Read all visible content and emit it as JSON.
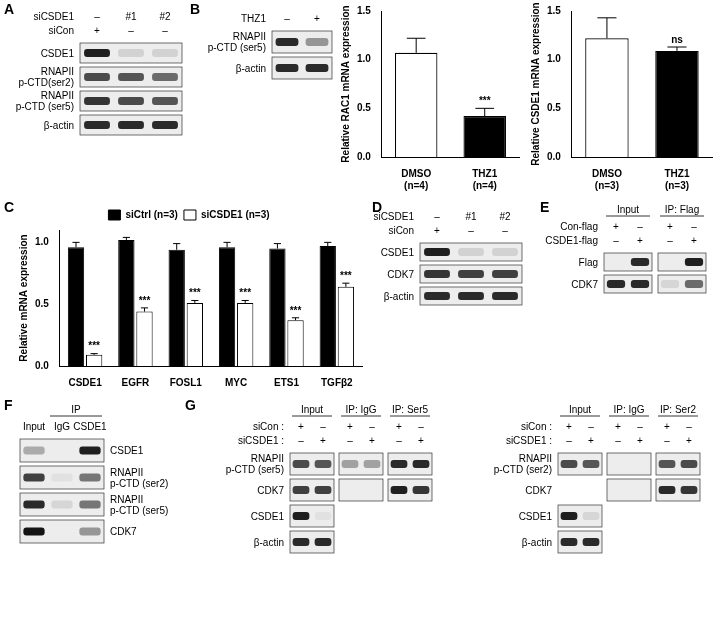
{
  "panels": [
    {
      "letter": "A",
      "blots": [
        {
          "marks": [
            {
              "label": "siCSDE1",
              "values": [
                "–",
                "#1",
                "#2"
              ]
            },
            {
              "label": "siCon",
              "values": [
                "+",
                "–",
                "–"
              ]
            }
          ],
          "boxes": [
            3
          ],
          "rows": [
            {
              "label": "CSDE1",
              "bands": [
                0.95,
                0.12,
                0.12
              ]
            },
            {
              "label": "RNAPII\np-CTD(ser2)",
              "bands": [
                0.75,
                0.7,
                0.6
              ]
            },
            {
              "label": "RNAPII\np-CTD (ser5)",
              "bands": [
                0.85,
                0.75,
                0.7
              ]
            },
            {
              "label": "β-actin",
              "bands": [
                0.9,
                0.9,
                0.9
              ]
            }
          ]
        }
      ]
    },
    {
      "letter": "B",
      "blots": [
        {
          "marks": [
            {
              "label": "THZ1",
              "values": [
                "–",
                "+"
              ]
            }
          ],
          "boxes": [
            2
          ],
          "rows": [
            {
              "label": "RNAPII\np-CTD (ser5)",
              "bands": [
                0.9,
                0.4
              ]
            },
            {
              "label": "β-actin",
              "bands": [
                0.9,
                0.9
              ]
            }
          ]
        }
      ]
    },
    {
      "letter": "C"
    },
    {
      "letter": "D",
      "blots": [
        {
          "marks": [
            {
              "label": "siCSDE1",
              "values": [
                "–",
                "#1",
                "#2"
              ]
            },
            {
              "label": "siCon",
              "values": [
                "+",
                "–",
                "–"
              ]
            }
          ],
          "boxes": [
            3
          ],
          "rows": [
            {
              "label": "CSDE1",
              "bands": [
                0.95,
                0.12,
                0.12
              ]
            },
            {
              "label": "CDK7",
              "bands": [
                0.85,
                0.8,
                0.8
              ]
            },
            {
              "label": "β-actin",
              "bands": [
                0.9,
                0.9,
                0.9
              ]
            }
          ]
        }
      ]
    },
    {
      "letter": "E",
      "blots": [
        {
          "spans": [
            {
              "label": "Input",
              "from": 0,
              "to": 1
            },
            {
              "label": "IP: Flag",
              "from": 2,
              "to": 3
            }
          ],
          "marks": [
            {
              "label": "Con-flag",
              "values": [
                "+",
                "–",
                "+",
                "–"
              ]
            },
            {
              "label": "CSDE1-flag",
              "values": [
                "–",
                "+",
                "–",
                "+"
              ]
            }
          ],
          "boxes": [
            2,
            2
          ],
          "rows": [
            {
              "label": "Flag",
              "bands": [
                0,
                0.9,
                0,
                0.95
              ]
            },
            {
              "label": "CDK7",
              "bands": [
                0.9,
                0.9,
                0.1,
                0.6
              ]
            }
          ]
        }
      ]
    },
    {
      "letter": "F",
      "blots": [
        {
          "spans": [
            {
              "label": "IP",
              "from": 1,
              "to": 2
            }
          ],
          "lane_labels": [
            "Input",
            "IgG",
            "CSDE1"
          ],
          "boxes": [
            3
          ],
          "rows": [
            {
              "label": "CSDE1",
              "bands": [
                0.3,
                0,
                0.95
              ]
            },
            {
              "label": "RNAPII\np-CTD (ser2)",
              "bands": [
                0.8,
                0.05,
                0.55
              ]
            },
            {
              "label": "RNAPII\np-CTD (ser5)",
              "bands": [
                0.9,
                0.1,
                0.55
              ]
            },
            {
              "label": "CDK7",
              "bands": [
                1,
                0,
                0.4
              ]
            }
          ]
        }
      ]
    },
    {
      "letter": "G",
      "blots": [
        {
          "spans": [
            {
              "label": "Input",
              "from": 0,
              "to": 1
            },
            {
              "label": "IP: IgG",
              "from": 2,
              "to": 3
            },
            {
              "label": "IP: Ser5",
              "from": 4,
              "to": 5
            }
          ],
          "marks": [
            {
              "label": "siCon :",
              "values": [
                "+",
                "–",
                "+",
                "–",
                "+",
                "–"
              ]
            },
            {
              "label": "siCSDE1 :",
              "values": [
                "–",
                "+",
                "–",
                "+",
                "–",
                "+"
              ]
            }
          ],
          "boxes": [
            2,
            2,
            2
          ],
          "rows": [
            {
              "label": "RNAPII\np-CTD (ser5)",
              "bands": [
                0.75,
                0.7,
                0.35,
                0.35,
                0.9,
                0.9
              ]
            },
            {
              "label": "CDK7",
              "bands": [
                0.8,
                0.8,
                0,
                0,
                0.95,
                0.85
              ]
            },
            {
              "label": "CSDE1",
              "bands": [
                0.95,
                0.05,
                null,
                null,
                null,
                null
              ]
            },
            {
              "label": "β-actin",
              "bands": [
                0.9,
                0.9,
                null,
                null,
                null,
                null
              ]
            }
          ]
        },
        {
          "spans": [
            {
              "label": "Input",
              "from": 0,
              "to": 1
            },
            {
              "label": "IP: IgG",
              "from": 2,
              "to": 3
            },
            {
              "label": "IP: Ser2",
              "from": 4,
              "to": 5
            }
          ],
          "marks": [
            {
              "label": "siCon :",
              "values": [
                "+",
                "–",
                "+",
                "–",
                "+",
                "–"
              ]
            },
            {
              "label": "siCSDE1 :",
              "values": [
                "–",
                "+",
                "–",
                "+",
                "–",
                "+"
              ]
            }
          ],
          "boxes": [
            2,
            2,
            2
          ],
          "rows": [
            {
              "label": "RNAPII\np-CTD (ser2)",
              "bands": [
                0.75,
                0.7,
                0,
                0,
                0.7,
                0.75
              ]
            },
            {
              "label": "CDK7",
              "bands": [
                null,
                null,
                0,
                0,
                0.9,
                0.85
              ]
            },
            {
              "label": "CSDE1",
              "bands": [
                0.95,
                0.1,
                null,
                null,
                null,
                null
              ]
            },
            {
              "label": "β-actin",
              "bands": [
                0.9,
                0.9,
                null,
                null,
                null,
                null
              ]
            }
          ]
        }
      ]
    }
  ],
  "chart_data": [
    {
      "type": "bar",
      "y_label": "Relative RAC1 mRNA expression",
      "categories": [
        "DMSO\n(n=4)",
        "THZ1\n(n=4)"
      ],
      "values": [
        1.07,
        0.42
      ],
      "errors": [
        0.15,
        0.08
      ],
      "colors": [
        "#ffffff",
        "#000000"
      ],
      "annotations": [
        null,
        "***"
      ],
      "ylim": [
        0,
        1.5
      ],
      "yticks": [
        {
          "value": 0,
          "label": "0.0"
        },
        {
          "value": 0.5,
          "label": "0.5"
        },
        {
          "value": 1,
          "label": "1.0"
        },
        {
          "value": 1.5,
          "label": "1.5"
        }
      ],
      "grid": false
    },
    {
      "type": "bar",
      "y_label": "Relative CSDE1 mRNA expression",
      "categories": [
        "DMSO\n(n=3)",
        "THZ1\n(n=3)"
      ],
      "values": [
        1.22,
        1.09
      ],
      "errors": [
        0.21,
        0.04
      ],
      "colors": [
        "#ffffff",
        "#000000"
      ],
      "annotations": [
        null,
        "ns"
      ],
      "ylim": [
        0,
        1.5
      ],
      "yticks": [
        {
          "value": 0,
          "label": "0.0"
        },
        {
          "value": 0.5,
          "label": "0.5"
        },
        {
          "value": 1,
          "label": "1.0"
        },
        {
          "value": 1.5,
          "label": "1.5"
        }
      ],
      "grid": false
    },
    {
      "type": "bar",
      "y_label": "Relative mRNA expression",
      "categories": [
        "CSDE1",
        "EGFR",
        "FOSL1",
        "MYC",
        "ETS1",
        "TGFβ2"
      ],
      "series": [
        {
          "name": "siCtrl (n=3)",
          "color": "#000000",
          "values": [
            0.96,
            1.02,
            0.94,
            0.96,
            0.95,
            0.97
          ],
          "errors": [
            0.04,
            0.02,
            0.05,
            0.04,
            0.04,
            0.03
          ]
        },
        {
          "name": "siCSDE1 (n=3)",
          "color": "#ffffff",
          "values": [
            0.09,
            0.44,
            0.51,
            0.51,
            0.37,
            0.64
          ],
          "errors": [
            0.01,
            0.03,
            0.02,
            0.02,
            0.02,
            0.03
          ],
          "annotations": [
            "***",
            "***",
            "***",
            "***",
            "***",
            "***"
          ]
        }
      ],
      "ylim": [
        0,
        1.1
      ],
      "yticks": [
        {
          "value": 0,
          "label": "0.0"
        },
        {
          "value": 0.5,
          "label": "0.5"
        },
        {
          "value": 1,
          "label": "1.0"
        }
      ],
      "legend": "top",
      "grid": false
    }
  ]
}
